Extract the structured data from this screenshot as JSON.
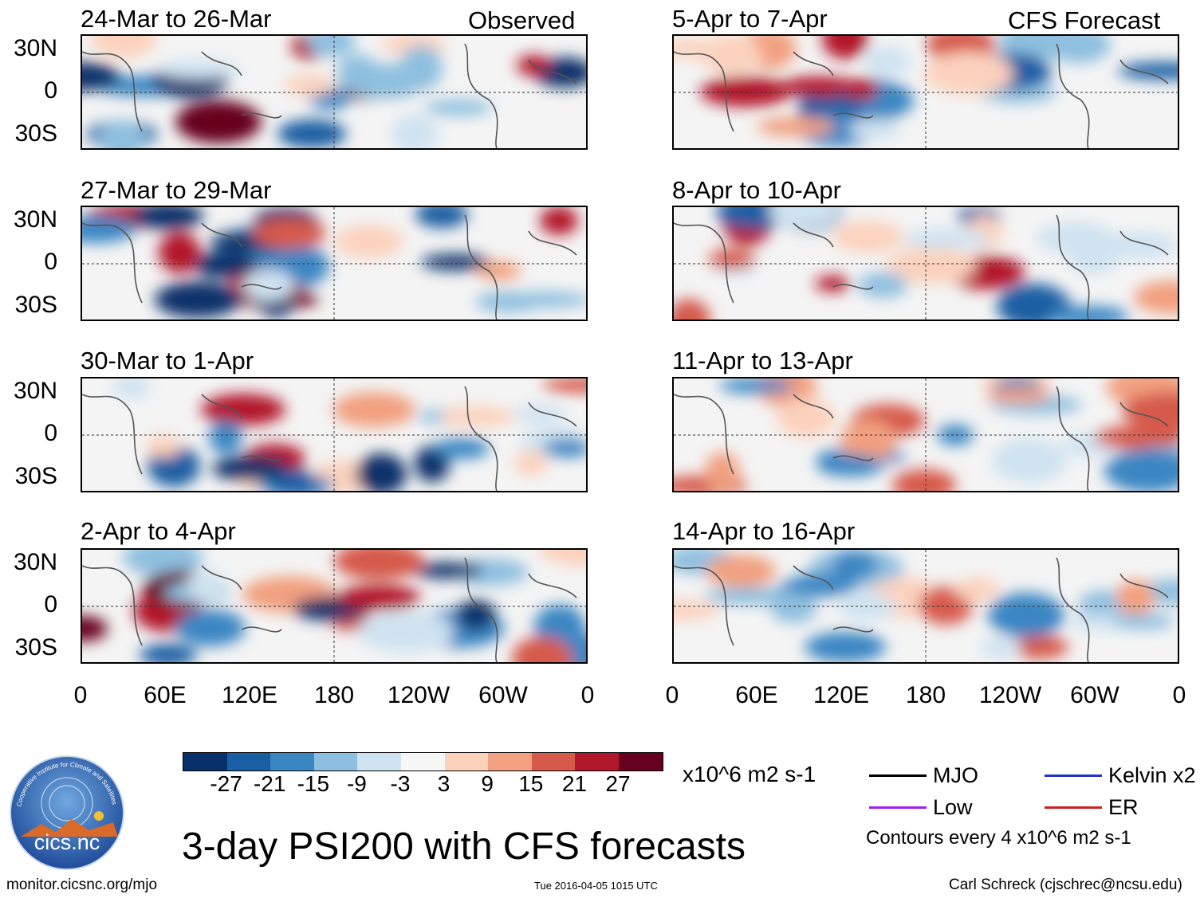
{
  "main_title": "3-day PSI200 with CFS forecasts",
  "column_labels": {
    "observed": "Observed",
    "forecast": "CFS Forecast"
  },
  "panels_left": [
    {
      "title": "24-Mar to 26-Mar"
    },
    {
      "title": "27-Mar to 29-Mar"
    },
    {
      "title": "30-Mar to 1-Apr"
    },
    {
      "title": "2-Apr to 4-Apr"
    }
  ],
  "panels_right": [
    {
      "title": "5-Apr to 7-Apr"
    },
    {
      "title": "8-Apr to 10-Apr"
    },
    {
      "title": "11-Apr to 13-Apr"
    },
    {
      "title": "14-Apr to 16-Apr"
    }
  ],
  "lat_labels": [
    "30N",
    "0",
    "30S"
  ],
  "lon_labels": [
    "0",
    "60E",
    "120E",
    "180",
    "120W",
    "60W",
    "0"
  ],
  "colorbar": {
    "colors": [
      "#08306b",
      "#1a5fa3",
      "#3a86c3",
      "#8ebfdf",
      "#cfe3f1",
      "#f7f7f7",
      "#fcd2bd",
      "#f2a07f",
      "#d65a4c",
      "#b2182b",
      "#67001f"
    ],
    "labels": [
      "-27",
      "-21",
      "-15",
      "-9",
      "-3",
      "3",
      "9",
      "15",
      "21",
      "27"
    ],
    "units": "x10^6 m2 s-1"
  },
  "legend": {
    "items": [
      {
        "label": "MJO",
        "color": "#000000"
      },
      {
        "label": "Kelvin x2",
        "color": "#2233cc"
      },
      {
        "label": "Low",
        "color": "#a020f0"
      },
      {
        "label": "ER",
        "color": "#cc2222"
      }
    ],
    "contour_note": "Contours every 4 x10^6 m2 s-1"
  },
  "logo_text": "cics.nc",
  "logo_ring_text": "Cooperative Institute for Climate and Satellites",
  "footer": {
    "left": "monitor.cicsnc.org/mjo",
    "center": "Tue 2016-04-05 1015 UTC",
    "right": "Carl Schreck (cjschrec@ncsu.edu)"
  }
}
